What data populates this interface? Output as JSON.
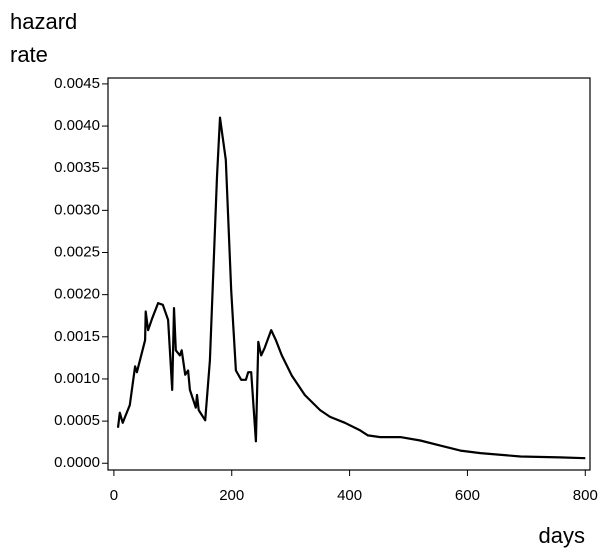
{
  "chart_data": {
    "type": "line",
    "y_label": [
      "hazard",
      "rate"
    ],
    "x_label": "days",
    "xlim": [
      -10,
      808
    ],
    "ylim": [
      -8e-05,
      0.00457
    ],
    "xticks": [
      0,
      200,
      400,
      600,
      800
    ],
    "yticks": [
      {
        "value": 0,
        "label": "0.0000"
      },
      {
        "value": 0.0005,
        "label": "0.0005"
      },
      {
        "value": 0.001,
        "label": "0.0010"
      },
      {
        "value": 0.0015,
        "label": "0.0015"
      },
      {
        "value": 0.002,
        "label": "0.0020"
      },
      {
        "value": 0.0025,
        "label": "0.0025"
      },
      {
        "value": 0.003,
        "label": "0.0030"
      },
      {
        "value": 0.0035,
        "label": "0.0035"
      },
      {
        "value": 0.004,
        "label": "0.0040"
      },
      {
        "value": 0.0045,
        "label": "0.0045"
      }
    ],
    "color": "#000000",
    "x": [
      7,
      10,
      15,
      27,
      36,
      39,
      53,
      54,
      58,
      65,
      75,
      83,
      92,
      99,
      102,
      105,
      112,
      115,
      121,
      126,
      129,
      139,
      141,
      144,
      155,
      163,
      175,
      180,
      184,
      190,
      199,
      207,
      216,
      224,
      228,
      233,
      241,
      245,
      250,
      256,
      267,
      275,
      285,
      302,
      324,
      350,
      367,
      392,
      418,
      431,
      452,
      486,
      520,
      554,
      588,
      622,
      690,
      757,
      800
    ],
    "values": [
      0.00042,
      0.0006,
      0.00048,
      0.00069,
      0.00115,
      0.00108,
      0.00146,
      0.0018,
      0.00158,
      0.00172,
      0.0019,
      0.00188,
      0.0017,
      0.00087,
      0.00184,
      0.00134,
      0.00128,
      0.00134,
      0.00105,
      0.0011,
      0.00087,
      0.00066,
      0.00081,
      0.00063,
      0.00051,
      0.00122,
      0.0034,
      0.0041,
      0.0039,
      0.0036,
      0.00205,
      0.0011,
      0.00099,
      0.00099,
      0.00108,
      0.00108,
      0.00026,
      0.00144,
      0.00128,
      0.00137,
      0.00158,
      0.00146,
      0.00128,
      0.00104,
      0.00081,
      0.00063,
      0.00055,
      0.00048,
      0.00039,
      0.00033,
      0.00031,
      0.00031,
      0.00027,
      0.00021,
      0.00015,
      0.00012,
      8e-05,
      7e-05,
      6e-05
    ]
  }
}
